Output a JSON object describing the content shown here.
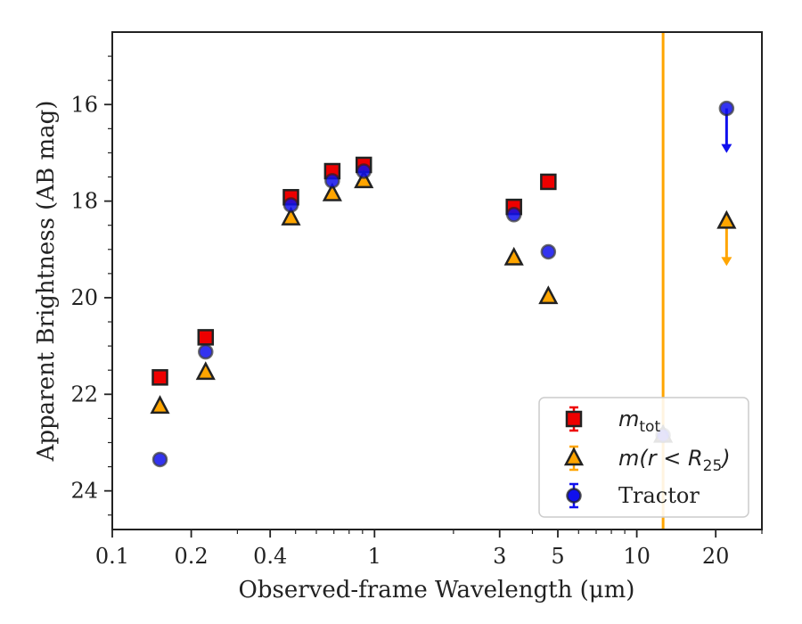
{
  "chart_data": {
    "type": "scatter",
    "xlabel": "Observed-frame Wavelength (μm)",
    "ylabel": "Apparent Brightness (AB mag)",
    "xscale": "log",
    "xlim": [
      0.1,
      30
    ],
    "ylim": [
      24.8,
      14.5
    ],
    "y_inverted": true,
    "grid": false,
    "legend_position": "lower-right",
    "x_ticks": [
      {
        "value": 0.1,
        "label": "0.1"
      },
      {
        "value": 0.2,
        "label": "0.2"
      },
      {
        "value": 0.4,
        "label": "0.4"
      },
      {
        "value": 1,
        "label": "1"
      },
      {
        "value": 3,
        "label": "3"
      },
      {
        "value": 5,
        "label": "5"
      },
      {
        "value": 10,
        "label": "10"
      },
      {
        "value": 20,
        "label": "20"
      }
    ],
    "y_ticks": [
      {
        "value": 16,
        "label": "16"
      },
      {
        "value": 18,
        "label": "18"
      },
      {
        "value": 20,
        "label": "20"
      },
      {
        "value": 22,
        "label": "22"
      },
      {
        "value": 24,
        "label": "24"
      }
    ],
    "vline": {
      "x": 12.6,
      "color": "#ffa500"
    },
    "series": [
      {
        "name": "m_tot",
        "legend_main": "m",
        "legend_sub": "tot",
        "marker": "square",
        "color": "#ee0000",
        "points": [
          {
            "x": 0.152,
            "y": 21.65
          },
          {
            "x": 0.227,
            "y": 20.82
          },
          {
            "x": 0.48,
            "y": 17.92
          },
          {
            "x": 0.69,
            "y": 17.38
          },
          {
            "x": 0.91,
            "y": 17.25
          },
          {
            "x": 3.4,
            "y": 18.12
          },
          {
            "x": 4.6,
            "y": 17.6
          }
        ],
        "upper_limits": []
      },
      {
        "name": "m(r < R25)",
        "legend_main": "m(r < R",
        "legend_sub": "25",
        "legend_tail": ")",
        "marker": "triangle",
        "color": "#ffa500",
        "points": [
          {
            "x": 0.152,
            "y": 22.25
          },
          {
            "x": 0.227,
            "y": 21.55
          },
          {
            "x": 0.48,
            "y": 18.35
          },
          {
            "x": 0.69,
            "y": 17.85
          },
          {
            "x": 0.91,
            "y": 17.58
          },
          {
            "x": 3.4,
            "y": 19.18
          },
          {
            "x": 4.6,
            "y": 19.98
          },
          {
            "x": 12.6,
            "y": 22.85
          }
        ],
        "upper_limits": [
          {
            "x": 22.0,
            "y": 18.42
          }
        ]
      },
      {
        "name": "Tractor",
        "legend_main": "Tractor",
        "marker": "circle",
        "color": "#1010ee",
        "points": [
          {
            "x": 0.152,
            "y": 23.35
          },
          {
            "x": 0.227,
            "y": 21.12
          },
          {
            "x": 0.48,
            "y": 18.08
          },
          {
            "x": 0.69,
            "y": 17.58
          },
          {
            "x": 0.91,
            "y": 17.38
          },
          {
            "x": 3.4,
            "y": 18.28
          },
          {
            "x": 4.6,
            "y": 19.05
          },
          {
            "x": 12.6,
            "y": 22.85
          }
        ],
        "upper_limits": [
          {
            "x": 22.0,
            "y": 16.08
          }
        ]
      }
    ]
  }
}
